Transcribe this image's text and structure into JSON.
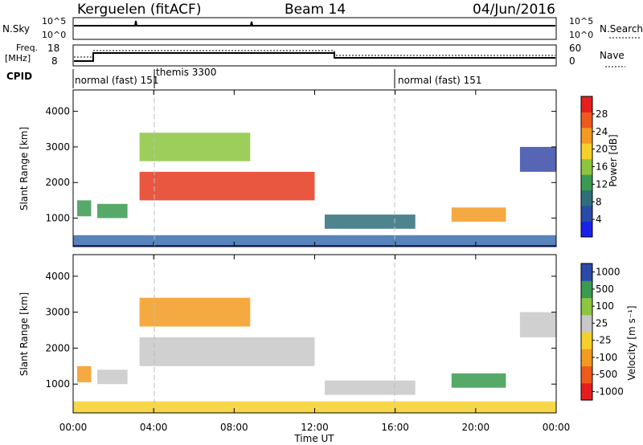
{
  "header": {
    "radar": "Kerguelen (fitACF)",
    "beam": "Beam 14",
    "date": "04/Jun/2016"
  },
  "status_panels": {
    "nsky_label": "N.Sky",
    "nsky_ticks": [
      "10^5",
      "10^0"
    ],
    "nsearch_label": "N.Search",
    "nsearch_ticks": [
      "10^5",
      "10^0"
    ],
    "freq_label_line1": "Freq.",
    "freq_label_line2": "[MHz]",
    "freq_ticks": [
      "18",
      "8"
    ],
    "nave_label": "Nave",
    "nave_ticks": [
      "60",
      "0"
    ],
    "cpid_label": "CPID",
    "cpid_segments": [
      {
        "label": "normal (fast) 151",
        "start_hour": 0
      },
      {
        "label": "themis 3300",
        "start_hour": 4
      },
      {
        "label": "normal (fast) 151",
        "start_hour": 16
      }
    ]
  },
  "chart_data": [
    {
      "type": "heatmap",
      "ylabel": "Slant Range [km]",
      "yticks": [
        "1000",
        "2000",
        "3000",
        "4000"
      ],
      "ylim": [
        200,
        4600
      ],
      "xlim": [
        0,
        24
      ],
      "colorbar": {
        "label": "Power [dB]",
        "ticks": [
          "4",
          "8",
          "12",
          "16",
          "20",
          "24",
          "28"
        ],
        "range": [
          0,
          32
        ],
        "colors": [
          "#1a22e8",
          "#2a4aa8",
          "#2f6e7a",
          "#3a9a50",
          "#8cc63f",
          "#f6d02a",
          "#f39a20",
          "#ee5a1c",
          "#e61e1e"
        ]
      },
      "regions": [
        {
          "t0": 0.0,
          "t1": 24.0,
          "r0": 200,
          "r1": 520,
          "color": "#3a6fae"
        },
        {
          "t0": 3.3,
          "t1": 12.0,
          "r0": 1500,
          "r1": 2300,
          "color": "#e63a1e"
        },
        {
          "t0": 3.3,
          "t1": 8.8,
          "r0": 2600,
          "r1": 3400,
          "color": "#8cc63f"
        },
        {
          "t0": 0.2,
          "t1": 0.9,
          "r0": 1050,
          "r1": 1500,
          "color": "#3a9a50"
        },
        {
          "t0": 1.2,
          "t1": 2.7,
          "r0": 1000,
          "r1": 1400,
          "color": "#3a9a50"
        },
        {
          "t0": 12.5,
          "t1": 17.0,
          "r0": 700,
          "r1": 1100,
          "color": "#2f6e7a"
        },
        {
          "t0": 18.8,
          "t1": 21.5,
          "r0": 900,
          "r1": 1300,
          "color": "#f39a20"
        },
        {
          "t0": 22.2,
          "t1": 24.0,
          "r0": 2300,
          "r1": 3000,
          "color": "#3a4aa8"
        }
      ]
    },
    {
      "type": "heatmap",
      "ylabel": "Slant Range [km]",
      "yticks": [
        "1000",
        "2000",
        "3000",
        "4000"
      ],
      "ylim": [
        200,
        4600
      ],
      "xlim": [
        0,
        24
      ],
      "xlabel": "Time UT",
      "xticks": [
        "00:00",
        "04:00",
        "08:00",
        "12:00",
        "16:00",
        "20:00",
        "00:00"
      ],
      "colorbar": {
        "label": "Velocity [m s⁻¹]",
        "ticks": [
          "1000",
          "500",
          "100",
          "25",
          "-25",
          "-100",
          "-500",
          "-1000"
        ],
        "range": [
          -1200,
          1200
        ],
        "colors": [
          "#e61e1e",
          "#ee5a1c",
          "#f39a20",
          "#f6d02a",
          "#c8c8c8",
          "#8cc63f",
          "#3a9a50",
          "#2a4aa8"
        ]
      },
      "regions": [
        {
          "t0": 0.0,
          "t1": 24.0,
          "r0": 200,
          "r1": 520,
          "color": "#f6d02a"
        },
        {
          "t0": 3.3,
          "t1": 12.0,
          "r0": 1500,
          "r1": 2300,
          "color": "#c8c8c8"
        },
        {
          "t0": 3.3,
          "t1": 8.8,
          "r0": 2600,
          "r1": 3400,
          "color": "#f39a20"
        },
        {
          "t0": 0.2,
          "t1": 0.9,
          "r0": 1050,
          "r1": 1500,
          "color": "#f39a20"
        },
        {
          "t0": 1.2,
          "t1": 2.7,
          "r0": 1000,
          "r1": 1400,
          "color": "#c8c8c8"
        },
        {
          "t0": 12.5,
          "t1": 17.0,
          "r0": 700,
          "r1": 1100,
          "color": "#c8c8c8"
        },
        {
          "t0": 18.8,
          "t1": 21.5,
          "r0": 900,
          "r1": 1300,
          "color": "#3a9a50"
        },
        {
          "t0": 22.2,
          "t1": 24.0,
          "r0": 2300,
          "r1": 3000,
          "color": "#c8c8c8"
        }
      ]
    }
  ]
}
